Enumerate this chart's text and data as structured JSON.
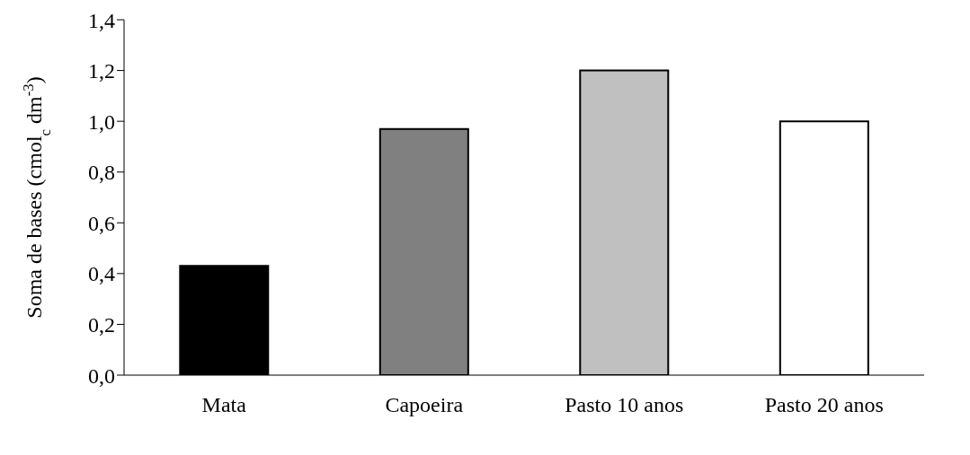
{
  "chart_data": {
    "type": "bar",
    "ylabel": "Soma de bases (cmol$_{c}$ dm$^{-3}$)",
    "categories": [
      "Mata",
      "Capoeira",
      "Pasto 10 anos",
      "Pasto 20 anos"
    ],
    "values": [
      0.43,
      0.97,
      1.2,
      1.0
    ],
    "colors": [
      "#000000",
      "#808080",
      "#c0c0c0",
      "#ffffff"
    ],
    "ylim": [
      0,
      1.4
    ],
    "yticks": [
      {
        "value": 0,
        "label": "0,0"
      },
      {
        "value": 0.2,
        "label": "0,2"
      },
      {
        "value": 0.4,
        "label": "0,4"
      },
      {
        "value": 0.6,
        "label": "0,6"
      },
      {
        "value": 0.8,
        "label": "0,8"
      },
      {
        "value": 1.0,
        "label": "1,0"
      },
      {
        "value": 1.2,
        "label": "1,2"
      },
      {
        "value": 1.4,
        "label": "1,4"
      }
    ],
    "grid": false
  }
}
